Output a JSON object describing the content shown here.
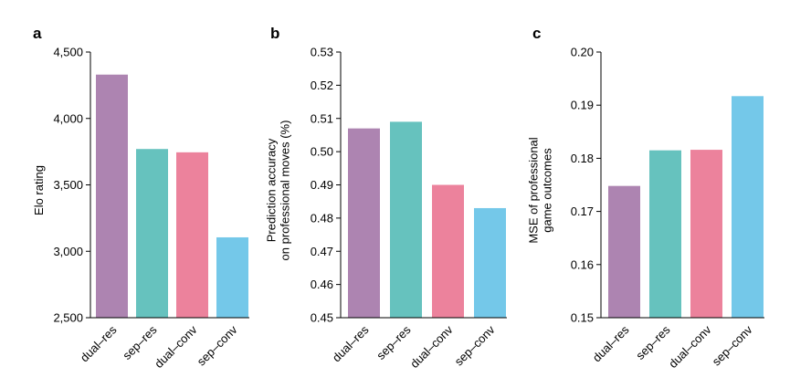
{
  "colors": [
    "#ad84b1",
    "#66c2be",
    "#ec829c",
    "#74c8e9"
  ],
  "chart_data": [
    {
      "type": "bar",
      "panel": "a",
      "categories": [
        "dual–res",
        "sep–res",
        "dual–conv",
        "sep–conv"
      ],
      "values": [
        4330,
        3770,
        3745,
        3105
      ],
      "ylabel": [
        "Elo rating"
      ],
      "ylim": [
        2500,
        4500
      ],
      "yticks": [
        2500,
        3000,
        3500,
        4000,
        4500
      ],
      "ytick_labels": [
        "2,500",
        "3,000",
        "3,500",
        "4,000",
        "4,500"
      ],
      "grid": false,
      "legend": "none"
    },
    {
      "type": "bar",
      "panel": "b",
      "categories": [
        "dual–res",
        "sep–res",
        "dual–conv",
        "sep–conv"
      ],
      "values": [
        0.507,
        0.509,
        0.49,
        0.483
      ],
      "ylabel": [
        "Prediction accuracy",
        "on professional moves (%)"
      ],
      "ylim": [
        0.45,
        0.53
      ],
      "yticks": [
        0.45,
        0.46,
        0.47,
        0.48,
        0.49,
        0.5,
        0.51,
        0.52,
        0.53
      ],
      "ytick_labels": [
        "0.45",
        "0.46",
        "0.47",
        "0.48",
        "0.49",
        "0.50",
        "0.51",
        "0.52",
        "0.53"
      ],
      "grid": false,
      "legend": "none"
    },
    {
      "type": "bar",
      "panel": "c",
      "categories": [
        "dual–res",
        "sep–res",
        "dual–conv",
        "sep–conv"
      ],
      "values": [
        0.1748,
        0.1815,
        0.1816,
        0.1917
      ],
      "ylabel": [
        "MSE of professional",
        "game outcomes"
      ],
      "ylim": [
        0.15,
        0.2
      ],
      "yticks": [
        0.15,
        0.16,
        0.17,
        0.18,
        0.19,
        0.2
      ],
      "ytick_labels": [
        "0.15",
        "0.16",
        "0.17",
        "0.18",
        "0.19",
        "0.20"
      ],
      "grid": false,
      "legend": "none"
    }
  ]
}
